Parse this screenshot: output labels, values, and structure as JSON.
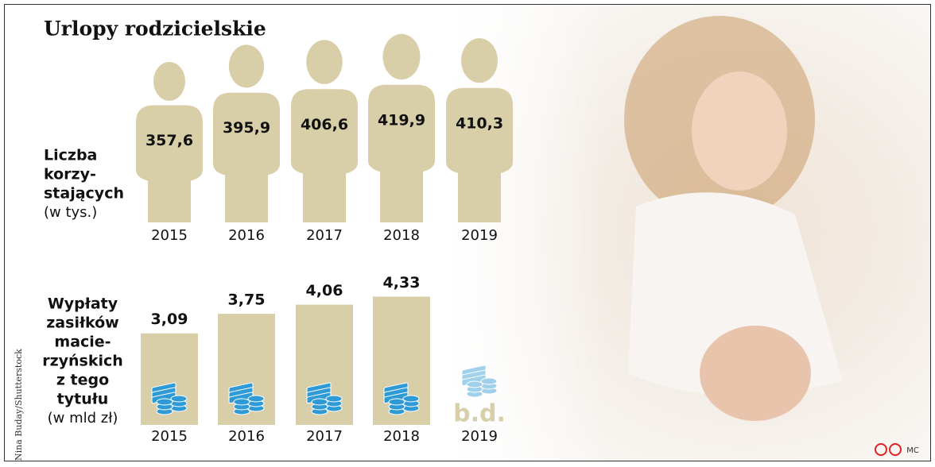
{
  "title": "Urlopy rodzicielskie",
  "photo_credit": "Nina Buday/Shutterstock",
  "author": "MC",
  "chart_data": [
    {
      "type": "pictogram",
      "label_lines": [
        "Liczba",
        "korzy-",
        "stających"
      ],
      "unit": "(w tys.)",
      "categories": [
        "2015",
        "2016",
        "2017",
        "2018",
        "2019"
      ],
      "values": [
        357.6,
        395.9,
        406.6,
        419.9,
        410.3
      ],
      "value_labels": [
        "357,6",
        "395,9",
        "406,6",
        "419,9",
        "410,3"
      ],
      "color": "#d8cfa9"
    },
    {
      "type": "bar",
      "label_lines": [
        "Wypłaty",
        "zasiłków",
        "macie-",
        "rzyńskich",
        "z tego",
        "tytułu"
      ],
      "unit": "(w mld zł)",
      "categories": [
        "2015",
        "2016",
        "2017",
        "2018",
        "2019"
      ],
      "values": [
        3.09,
        3.75,
        4.06,
        4.33,
        null
      ],
      "value_labels": [
        "3,09",
        "3,75",
        "4,06",
        "4,33",
        "b.d."
      ],
      "color": "#d8cfa9",
      "icon_color": "#2f9bd6"
    }
  ]
}
